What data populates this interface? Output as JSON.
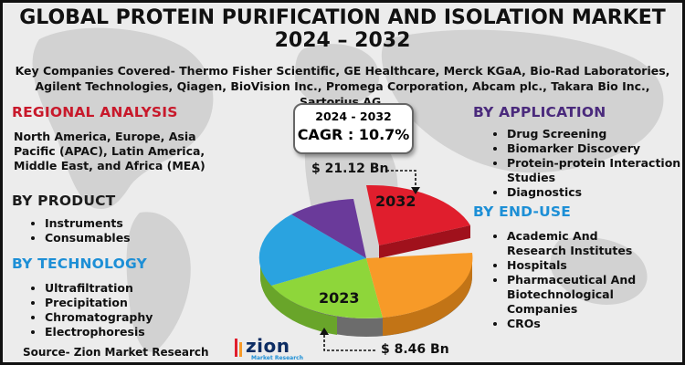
{
  "title_line1": "GLOBAL PROTEIN PURIFICATION AND ISOLATION MARKET",
  "title_line2": "2024 – 2032",
  "companies": "Key Companies Covered- Thermo Fisher Scientific, GE Healthcare, Merck KGaA, Bio-Rad Laboratories, Agilent Technologies, Qiagen, BioVision Inc., Promega Corporation, Abcam plc., Takara Bio Inc., Sartorius AG.",
  "regional": {
    "heading": "REGIONAL ANALYSIS",
    "text": "North America, Europe, Asia Pacific (APAC), Latin America, Middle East, and Africa (MEA)"
  },
  "product": {
    "heading": "BY PRODUCT",
    "items": [
      "Instruments",
      "Consumables"
    ]
  },
  "technology": {
    "heading": "BY TECHNOLOGY",
    "items": [
      "Ultrafiltration",
      "Precipitation",
      "Chromatography",
      "Electrophoresis"
    ]
  },
  "application": {
    "heading": "BY APPLICATION",
    "items": [
      "Drug Screening",
      "Biomarker Discovery",
      "Protein-protein Interaction Studies",
      "Diagnostics"
    ]
  },
  "enduse": {
    "heading": "BY END-USE",
    "items": [
      "Academic And Research Institutes",
      "Hospitals",
      "Pharmaceutical And Biotechnological Companies",
      "CROs"
    ]
  },
  "cagr": {
    "period": "2024 - 2032",
    "label": "CAGR : 10.7%"
  },
  "pie": {
    "value_2032": "$ 21.12 Bn",
    "value_2023": "$ 8.46  Bn",
    "label_2032": "2032",
    "label_2023": "2023",
    "colors": [
      "#e01e2d",
      "#f79a28",
      "#8ed63a",
      "#2aa3e0",
      "#6a3a9a"
    ]
  },
  "source": "Source- Zion Market Research",
  "logo": {
    "name": "zion",
    "sub": "Market Research"
  }
}
